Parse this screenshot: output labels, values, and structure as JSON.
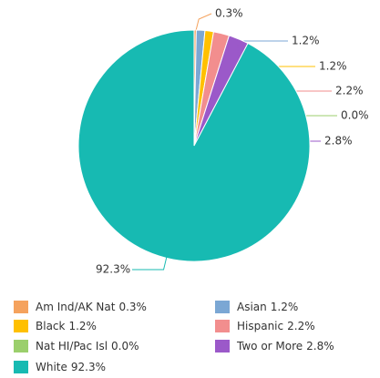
{
  "chart_data": {
    "type": "pie",
    "categories": [
      "Am Ind/AK Nat",
      "Asian",
      "Black",
      "Hispanic",
      "Nat HI/Pac Isl",
      "Two or More",
      "White"
    ],
    "values": [
      0.3,
      1.2,
      1.2,
      2.2,
      0.0,
      2.8,
      92.3
    ],
    "value_labels": [
      "0.3%",
      "1.2%",
      "1.2%",
      "2.2%",
      "0.0%",
      "2.8%",
      "92.3%"
    ],
    "colors": [
      "#f5a25d",
      "#7ba7d4",
      "#ffc000",
      "#f28e8e",
      "#9bcf6c",
      "#9b59c9",
      "#17bab2"
    ],
    "legend": "bottom"
  }
}
